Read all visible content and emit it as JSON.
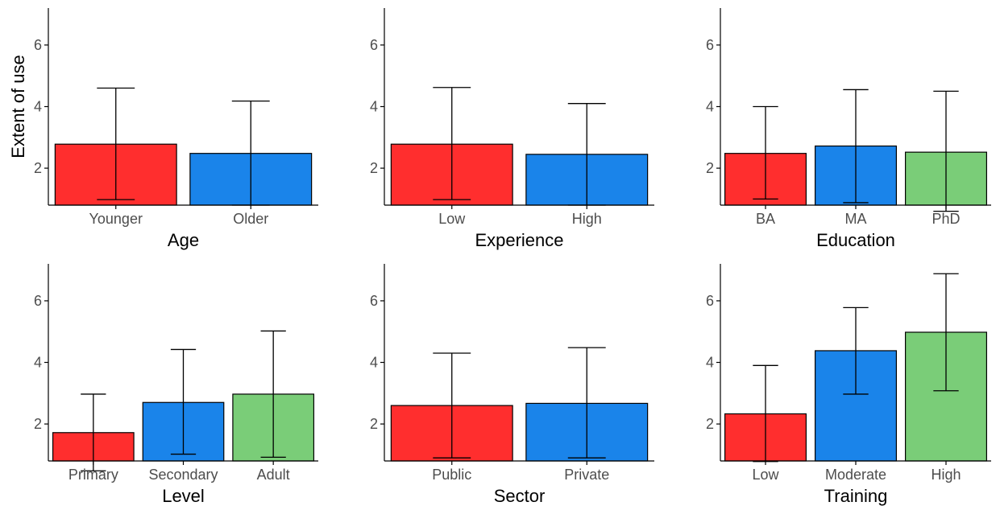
{
  "figure": {
    "ylabel": "Extent of use",
    "colors": [
      "#ff2e2e",
      "#1a84ea",
      "#7acd78"
    ]
  },
  "chart_data": [
    {
      "type": "bar",
      "xlabel": "Age",
      "ylabel": "Extent of use",
      "ylim": [
        0.8,
        7.2
      ],
      "yticks": [
        2,
        4,
        6
      ],
      "categories": [
        "Younger",
        "Older"
      ],
      "values": [
        2.78,
        2.48
      ],
      "error_low": [
        0.98,
        0.8
      ],
      "error_high": [
        4.6,
        4.18
      ]
    },
    {
      "type": "bar",
      "xlabel": "Experience",
      "ylabel": "",
      "ylim": [
        0.8,
        7.2
      ],
      "yticks": [
        2,
        4,
        6
      ],
      "categories": [
        "Low",
        "High"
      ],
      "values": [
        2.78,
        2.45
      ],
      "error_low": [
        0.98,
        0.8
      ],
      "error_high": [
        4.62,
        4.1
      ]
    },
    {
      "type": "bar",
      "xlabel": "Education",
      "ylabel": "",
      "ylim": [
        0.8,
        7.2
      ],
      "yticks": [
        2,
        4,
        6
      ],
      "categories": [
        "BA",
        "MA",
        "PhD"
      ],
      "values": [
        2.48,
        2.72,
        2.52
      ],
      "error_low": [
        1.0,
        0.88,
        0.6
      ],
      "error_high": [
        4.0,
        4.55,
        4.5
      ]
    },
    {
      "type": "bar",
      "xlabel": "Level",
      "ylabel": "",
      "ylim": [
        0.8,
        7.2
      ],
      "yticks": [
        2,
        4,
        6
      ],
      "categories": [
        "Primary",
        "Secondary",
        "Adult"
      ],
      "values": [
        1.72,
        2.7,
        2.97
      ],
      "error_low": [
        0.48,
        1.02,
        0.92
      ],
      "error_high": [
        2.97,
        4.42,
        5.02
      ]
    },
    {
      "type": "bar",
      "xlabel": "Sector",
      "ylabel": "",
      "ylim": [
        0.8,
        7.2
      ],
      "yticks": [
        2,
        4,
        6
      ],
      "categories": [
        "Public",
        "Private"
      ],
      "values": [
        2.6,
        2.67
      ],
      "error_low": [
        0.9,
        0.9
      ],
      "error_high": [
        4.3,
        4.48
      ]
    },
    {
      "type": "bar",
      "xlabel": "Training",
      "ylabel": "",
      "ylim": [
        0.8,
        7.2
      ],
      "yticks": [
        2,
        4,
        6
      ],
      "categories": [
        "Low",
        "Moderate",
        "High"
      ],
      "values": [
        2.33,
        4.38,
        4.98
      ],
      "error_low": [
        0.78,
        2.97,
        3.08
      ],
      "error_high": [
        3.9,
        5.78,
        6.88
      ]
    }
  ]
}
